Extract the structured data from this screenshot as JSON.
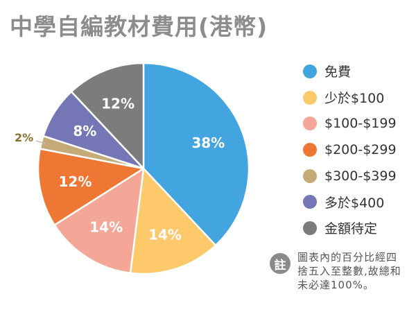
{
  "title": "中學自編教材費用(港幣)",
  "chart_data": {
    "type": "pie",
    "title": "中學自編教材費用(港幣)",
    "slices": [
      {
        "label": "免費",
        "value": 38,
        "display": "38%",
        "color": "#42a5e0"
      },
      {
        "label": "少於$100",
        "value": 14,
        "display": "14%",
        "color": "#fdc96a"
      },
      {
        "label": "$100-$199",
        "value": 14,
        "display": "14%",
        "color": "#f4a797"
      },
      {
        "label": "$200-$299",
        "value": 12,
        "display": "12%",
        "color": "#ee7734"
      },
      {
        "label": "$300-$399",
        "value": 2,
        "display": "2%",
        "color": "#c4aa77"
      },
      {
        "label": "多於$400",
        "value": 8,
        "display": "8%",
        "color": "#7476b6"
      },
      {
        "label": "金額待定",
        "value": 12,
        "display": "12%",
        "color": "#7c7c7c"
      }
    ],
    "legend_position": "right"
  },
  "note": {
    "badge": "註",
    "text": "圖表內的百分比經四捨五入至整數,故總和未必達100%。"
  }
}
